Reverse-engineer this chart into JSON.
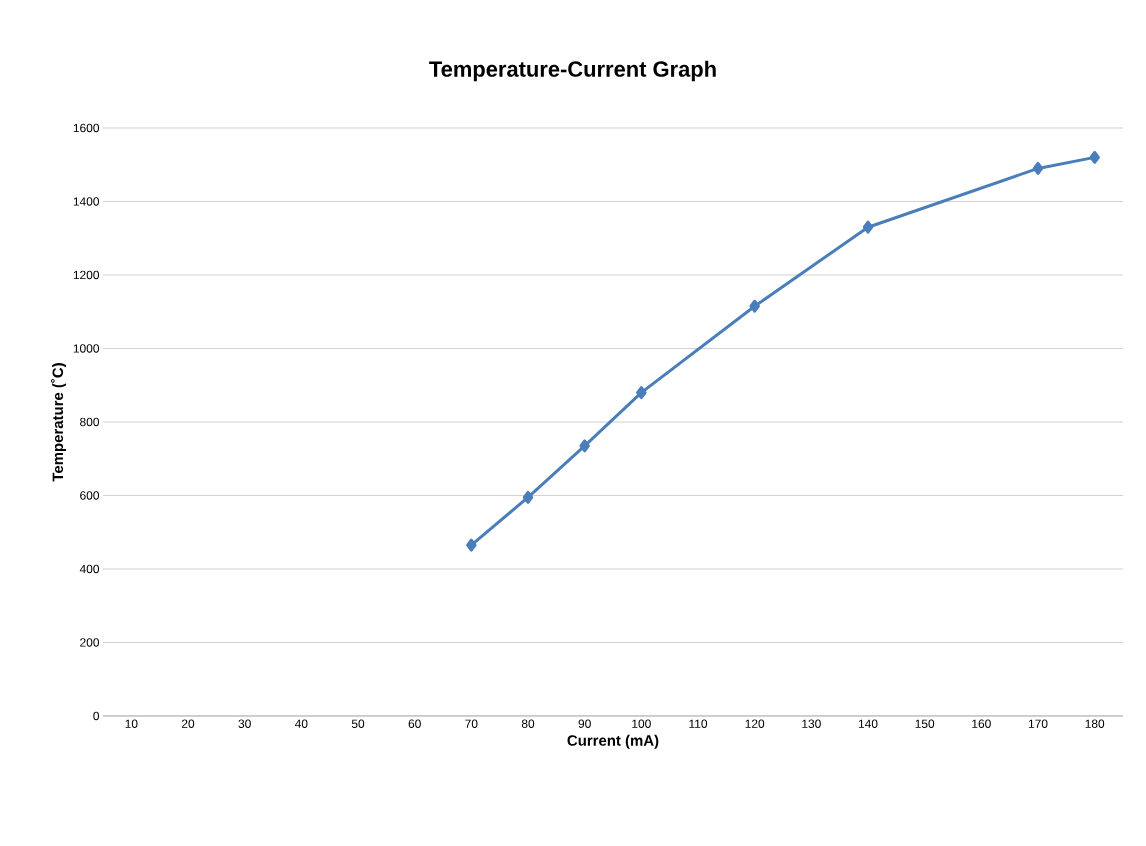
{
  "chart_data": {
    "type": "line",
    "title": "Temperature-Current Graph",
    "xlabel": "Current (mA)",
    "ylabel": "Temperature (˚C)",
    "x": [
      70,
      80,
      90,
      100,
      120,
      140,
      170,
      180
    ],
    "series": [
      {
        "color": "#4a7ebb",
        "values": [
          465,
          595,
          735,
          880,
          1115,
          1330,
          1490,
          1520
        ]
      }
    ],
    "xlim": [
      5,
      185
    ],
    "xticks": [
      10,
      20,
      30,
      40,
      50,
      60,
      70,
      80,
      90,
      100,
      110,
      120,
      130,
      140,
      150,
      160,
      170,
      180
    ],
    "ylim": [
      0,
      1600
    ],
    "yticks": [
      0,
      200,
      400,
      600,
      800,
      1000,
      1200,
      1400,
      1600
    ],
    "grid": "y",
    "marker": "diamond",
    "line_style": "solid"
  }
}
